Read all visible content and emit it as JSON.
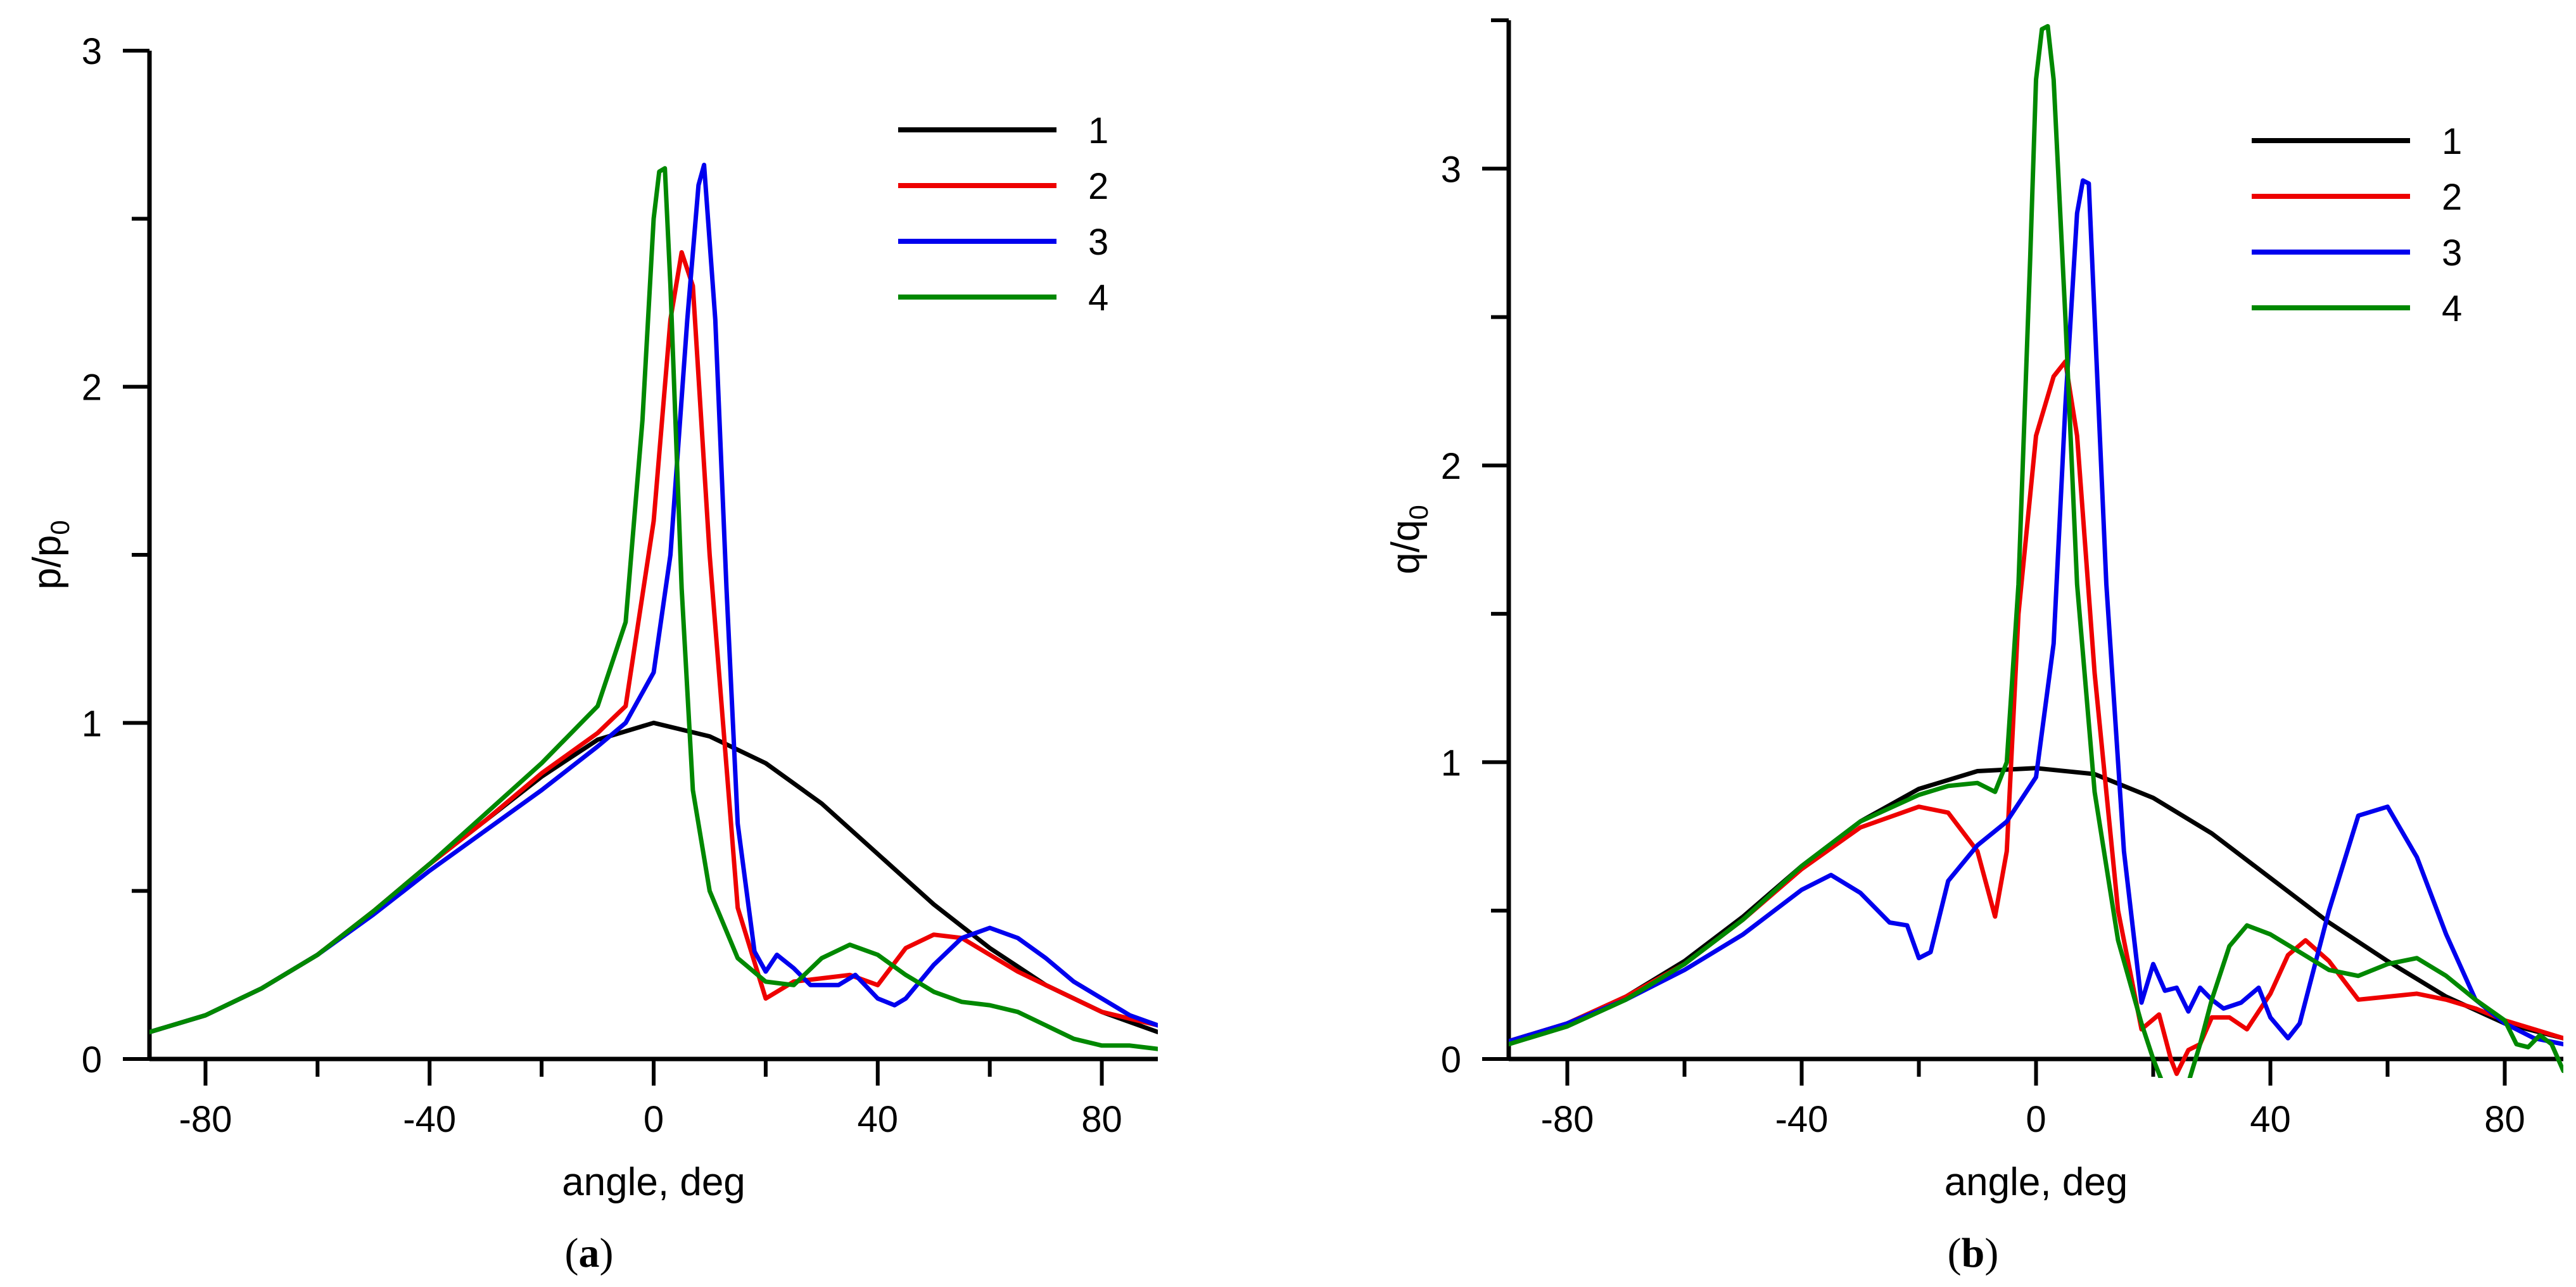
{
  "chart_data": [
    {
      "id": "a",
      "type": "line",
      "caption_letter": "a",
      "xlabel": "angle, deg",
      "ylabel": "p/p",
      "ylabel_sub": "0",
      "xlim": [
        -90,
        90
      ],
      "ylim": [
        0,
        3
      ],
      "xticks": [
        -80,
        -40,
        0,
        40,
        80
      ],
      "yticks": [
        0,
        1,
        2,
        3
      ],
      "legend_position": "top-right",
      "series": [
        {
          "name": "1",
          "color": "#000000",
          "x": [
            -90,
            -80,
            -70,
            -60,
            -50,
            -40,
            -30,
            -20,
            -10,
            0,
            10,
            20,
            30,
            40,
            50,
            60,
            70,
            80,
            90
          ],
          "y": [
            0.08,
            0.13,
            0.21,
            0.31,
            0.44,
            0.58,
            0.71,
            0.84,
            0.95,
            1.0,
            0.96,
            0.88,
            0.76,
            0.61,
            0.46,
            0.33,
            0.22,
            0.14,
            0.08
          ]
        },
        {
          "name": "2",
          "color": "#ee0000",
          "x": [
            -90,
            -80,
            -70,
            -60,
            -50,
            -40,
            -30,
            -20,
            -10,
            -5,
            0,
            3,
            5,
            7,
            10,
            15,
            20,
            25,
            30,
            35,
            40,
            45,
            50,
            55,
            60,
            65,
            70,
            75,
            80,
            85,
            90
          ],
          "y": [
            0.08,
            0.13,
            0.21,
            0.31,
            0.44,
            0.58,
            0.71,
            0.85,
            0.97,
            1.05,
            1.6,
            2.2,
            2.4,
            2.3,
            1.5,
            0.45,
            0.18,
            0.23,
            0.24,
            0.25,
            0.22,
            0.33,
            0.37,
            0.36,
            0.31,
            0.26,
            0.22,
            0.18,
            0.14,
            0.12,
            0.1
          ]
        },
        {
          "name": "3",
          "color": "#0000ee",
          "x": [
            -90,
            -80,
            -70,
            -60,
            -50,
            -40,
            -30,
            -20,
            -10,
            -5,
            0,
            3,
            6,
            8,
            9,
            11,
            13,
            15,
            18,
            20,
            22,
            25,
            28,
            30,
            33,
            36,
            40,
            43,
            45,
            50,
            55,
            60,
            65,
            70,
            75,
            80,
            85,
            90
          ],
          "y": [
            0.08,
            0.13,
            0.21,
            0.31,
            0.43,
            0.56,
            0.68,
            0.8,
            0.93,
            1.0,
            1.15,
            1.5,
            2.2,
            2.6,
            2.66,
            2.2,
            1.4,
            0.7,
            0.32,
            0.26,
            0.31,
            0.27,
            0.22,
            0.22,
            0.22,
            0.25,
            0.18,
            0.16,
            0.18,
            0.28,
            0.36,
            0.39,
            0.36,
            0.3,
            0.23,
            0.18,
            0.13,
            0.1
          ]
        },
        {
          "name": "4",
          "color": "#008800",
          "x": [
            -90,
            -80,
            -70,
            -60,
            -50,
            -40,
            -30,
            -20,
            -10,
            -5,
            -2,
            0,
            1,
            2,
            3,
            5,
            7,
            10,
            15,
            20,
            25,
            30,
            35,
            40,
            45,
            50,
            55,
            60,
            65,
            70,
            75,
            80,
            85,
            90
          ],
          "y": [
            0.08,
            0.13,
            0.21,
            0.31,
            0.44,
            0.58,
            0.73,
            0.88,
            1.05,
            1.3,
            1.9,
            2.5,
            2.64,
            2.65,
            2.3,
            1.4,
            0.8,
            0.5,
            0.3,
            0.23,
            0.22,
            0.3,
            0.34,
            0.31,
            0.25,
            0.2,
            0.17,
            0.16,
            0.14,
            0.1,
            0.06,
            0.04,
            0.04,
            0.03
          ]
        }
      ]
    },
    {
      "id": "b",
      "type": "line",
      "caption_letter": "b",
      "xlabel": "angle, deg",
      "ylabel": "q/q",
      "ylabel_sub": "0",
      "xlim": [
        -90,
        90
      ],
      "ylim": [
        0,
        3.5
      ],
      "xticks": [
        -80,
        -40,
        0,
        40,
        80
      ],
      "yticks": [
        0,
        1,
        2,
        3
      ],
      "legend_position": "top-right",
      "series": [
        {
          "name": "1",
          "color": "#000000",
          "x": [
            -90,
            -80,
            -70,
            -60,
            -50,
            -40,
            -30,
            -20,
            -10,
            0,
            10,
            20,
            30,
            40,
            50,
            60,
            70,
            80,
            90
          ],
          "y": [
            0.06,
            0.12,
            0.21,
            0.33,
            0.48,
            0.65,
            0.8,
            0.91,
            0.97,
            0.98,
            0.96,
            0.88,
            0.76,
            0.61,
            0.46,
            0.33,
            0.21,
            0.12,
            0.07
          ]
        },
        {
          "name": "2",
          "color": "#ee0000",
          "x": [
            -90,
            -80,
            -70,
            -60,
            -50,
            -40,
            -30,
            -20,
            -15,
            -10,
            -7,
            -5,
            -3,
            0,
            3,
            5,
            7,
            10,
            14,
            18,
            21,
            23,
            24,
            26,
            28,
            30,
            33,
            36,
            40,
            43,
            46,
            50,
            55,
            60,
            65,
            70,
            75,
            80,
            85,
            90
          ],
          "y": [
            0.06,
            0.12,
            0.21,
            0.32,
            0.47,
            0.64,
            0.78,
            0.85,
            0.83,
            0.7,
            0.48,
            0.7,
            1.5,
            2.1,
            2.3,
            2.35,
            2.1,
            1.3,
            0.5,
            0.1,
            0.15,
            0.0,
            -0.05,
            0.03,
            0.05,
            0.14,
            0.14,
            0.1,
            0.22,
            0.35,
            0.4,
            0.33,
            0.2,
            0.21,
            0.22,
            0.2,
            0.17,
            0.13,
            0.1,
            0.07
          ]
        },
        {
          "name": "3",
          "color": "#0000ee",
          "x": [
            -90,
            -80,
            -70,
            -60,
            -50,
            -40,
            -35,
            -30,
            -25,
            -22,
            -20,
            -18,
            -15,
            -10,
            -5,
            0,
            3,
            5,
            7,
            8,
            9,
            10,
            12,
            15,
            18,
            20,
            22,
            24,
            26,
            28,
            30,
            32,
            35,
            38,
            40,
            43,
            45,
            50,
            55,
            60,
            65,
            70,
            75,
            80,
            85,
            90
          ],
          "y": [
            0.06,
            0.12,
            0.2,
            0.3,
            0.42,
            0.57,
            0.62,
            0.56,
            0.46,
            0.45,
            0.34,
            0.36,
            0.6,
            0.72,
            0.8,
            0.95,
            1.4,
            2.2,
            2.85,
            2.96,
            2.95,
            2.5,
            1.6,
            0.7,
            0.19,
            0.32,
            0.23,
            0.24,
            0.16,
            0.24,
            0.2,
            0.17,
            0.19,
            0.24,
            0.14,
            0.07,
            0.12,
            0.5,
            0.82,
            0.85,
            0.68,
            0.42,
            0.2,
            0.12,
            0.07,
            0.05
          ]
        },
        {
          "name": "4",
          "color": "#008800",
          "x": [
            -90,
            -80,
            -70,
            -60,
            -50,
            -40,
            -30,
            -20,
            -15,
            -10,
            -7,
            -5,
            -3,
            -1,
            0,
            1,
            2,
            3,
            5,
            7,
            10,
            14,
            18,
            20,
            22,
            24,
            26,
            28,
            30,
            33,
            36,
            40,
            45,
            50,
            55,
            60,
            65,
            70,
            75,
            80,
            82,
            84,
            86,
            88,
            90
          ],
          "y": [
            0.05,
            0.11,
            0.2,
            0.32,
            0.47,
            0.65,
            0.8,
            0.89,
            0.92,
            0.93,
            0.9,
            1.0,
            1.6,
            2.7,
            3.3,
            3.47,
            3.48,
            3.3,
            2.5,
            1.6,
            0.9,
            0.4,
            0.12,
            0.0,
            -0.1,
            -0.12,
            -0.08,
            0.05,
            0.2,
            0.38,
            0.45,
            0.42,
            0.36,
            0.3,
            0.28,
            0.32,
            0.34,
            0.28,
            0.2,
            0.13,
            0.05,
            0.04,
            0.08,
            0.05,
            -0.04
          ]
        }
      ]
    }
  ]
}
